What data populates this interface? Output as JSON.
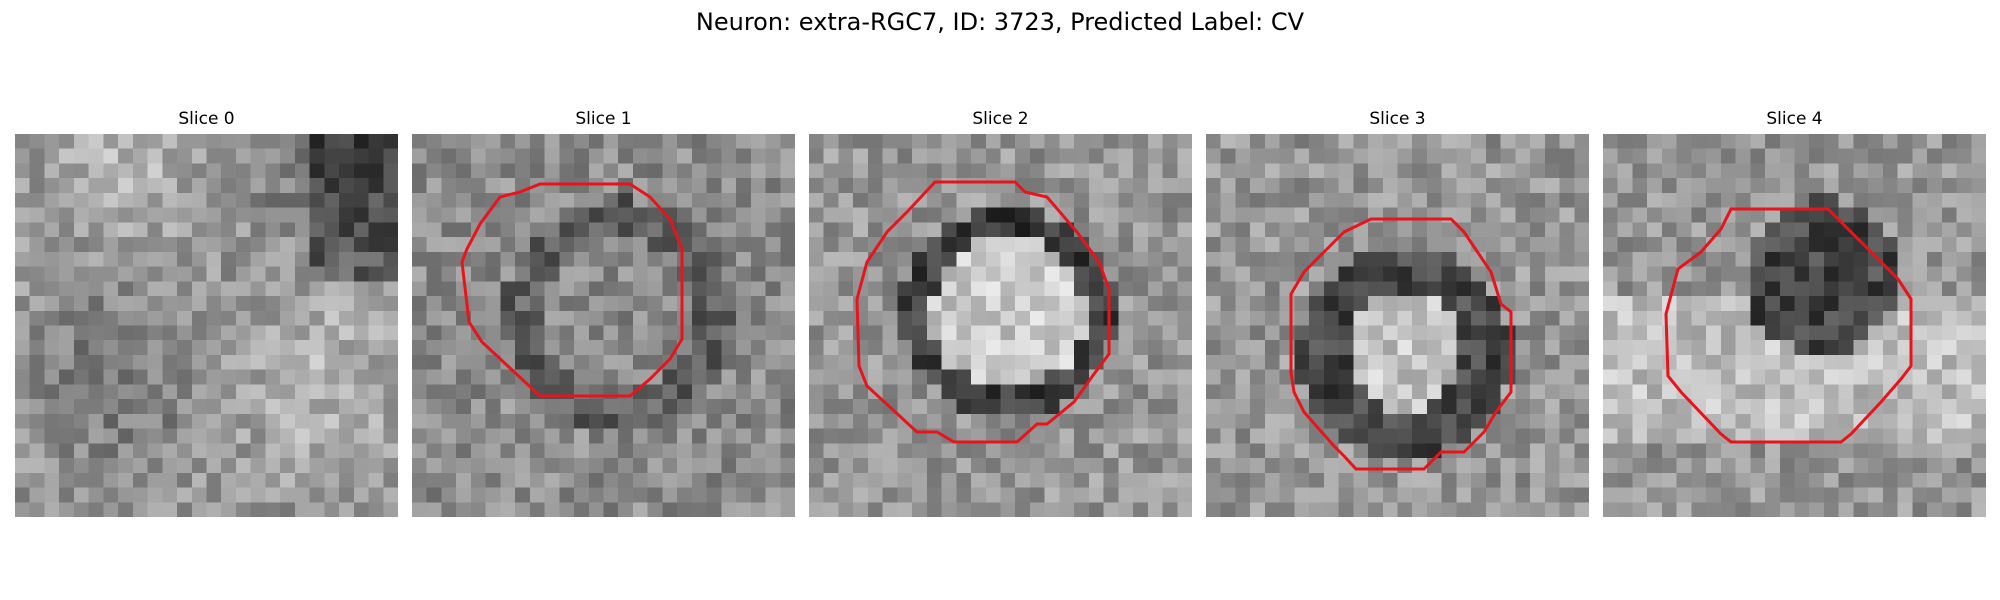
{
  "figure": {
    "title": "Neuron: extra-RGC7, ID: 3723, Predicted Label: CV"
  },
  "panels": [
    {
      "title": "Slice 0",
      "has_contour": false
    },
    {
      "title": "Slice 1",
      "has_contour": true
    },
    {
      "title": "Slice 2",
      "has_contour": true
    },
    {
      "title": "Slice 3",
      "has_contour": true
    },
    {
      "title": "Slice 4",
      "has_contour": true
    }
  ],
  "colors": {
    "contour": "#e8141c",
    "background": "#ffffff"
  }
}
